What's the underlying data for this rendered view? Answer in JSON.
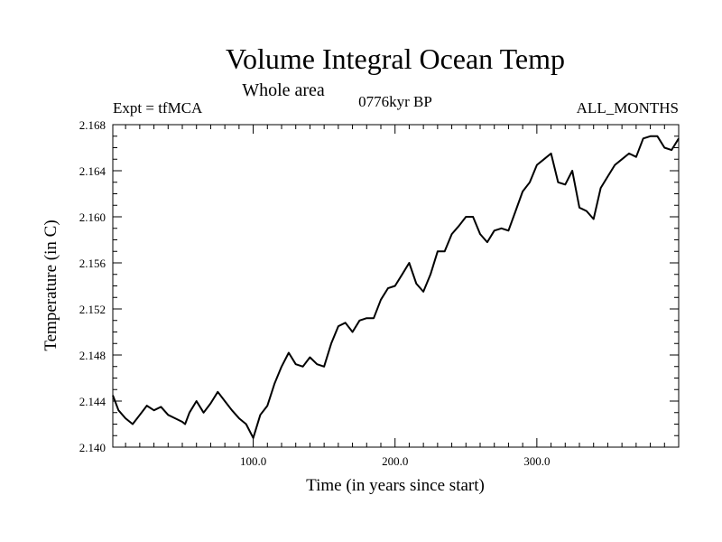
{
  "chart_data": {
    "type": "line",
    "title": "Volume Integral Ocean Temp",
    "subtitle": "Whole area",
    "left_label": "Expt = tfMCA",
    "center_label": "0776kyr BP",
    "right_label": "ALL_MONTHS",
    "xlabel": "Time (in years since start)",
    "ylabel": "Temperature (in C)",
    "xlim": [
      1,
      400
    ],
    "ylim": [
      2.14,
      2.168
    ],
    "x_ticks": [
      100,
      200,
      300
    ],
    "x_tick_labels": [
      "100.0",
      "200.0",
      "300.0"
    ],
    "y_ticks": [
      2.14,
      2.144,
      2.148,
      2.152,
      2.156,
      2.16,
      2.164,
      2.168
    ],
    "y_tick_labels": [
      "2.140",
      "2.144",
      "2.148",
      "2.152",
      "2.156",
      "2.160",
      "2.164",
      "2.168"
    ],
    "grid": false,
    "series": [
      {
        "color": "#000000",
        "x": [
          1,
          5,
          10,
          15,
          20,
          25,
          30,
          35,
          40,
          45,
          50,
          52,
          55,
          60,
          65,
          70,
          75,
          80,
          85,
          90,
          95,
          100,
          105,
          110,
          115,
          120,
          125,
          130,
          135,
          140,
          145,
          150,
          155,
          160,
          165,
          170,
          175,
          180,
          185,
          190,
          195,
          200,
          205,
          210,
          215,
          220,
          225,
          230,
          235,
          240,
          245,
          250,
          255,
          260,
          265,
          270,
          275,
          280,
          285,
          290,
          295,
          300,
          305,
          310,
          315,
          320,
          325,
          330,
          335,
          340,
          345,
          350,
          355,
          360,
          365,
          370,
          375,
          380,
          385,
          390,
          395,
          400
        ],
        "y": [
          2.1445,
          2.1432,
          2.1425,
          2.142,
          2.1428,
          2.1436,
          2.1432,
          2.1435,
          2.1428,
          2.1425,
          2.1422,
          2.142,
          2.143,
          2.144,
          2.143,
          2.1438,
          2.1448,
          2.144,
          2.1432,
          2.1425,
          2.142,
          2.1408,
          2.1428,
          2.1436,
          2.1455,
          2.147,
          2.1482,
          2.1472,
          2.147,
          2.1478,
          2.1472,
          2.147,
          2.149,
          2.1505,
          2.1508,
          2.15,
          2.151,
          2.1512,
          2.1512,
          2.1528,
          2.1538,
          2.154,
          2.155,
          2.156,
          2.1542,
          2.1535,
          2.155,
          2.157,
          2.157,
          2.1585,
          2.1592,
          2.16,
          2.16,
          2.1585,
          2.1578,
          2.1588,
          2.159,
          2.1588,
          2.1605,
          2.1622,
          2.163,
          2.1645,
          2.165,
          2.1655,
          2.163,
          2.1628,
          2.164,
          2.1608,
          2.1605,
          2.1598,
          2.1625,
          2.1635,
          2.1645,
          2.165,
          2.1655,
          2.1652,
          2.1668,
          2.167,
          2.167,
          2.166,
          2.1658,
          2.1668
        ]
      }
    ]
  }
}
